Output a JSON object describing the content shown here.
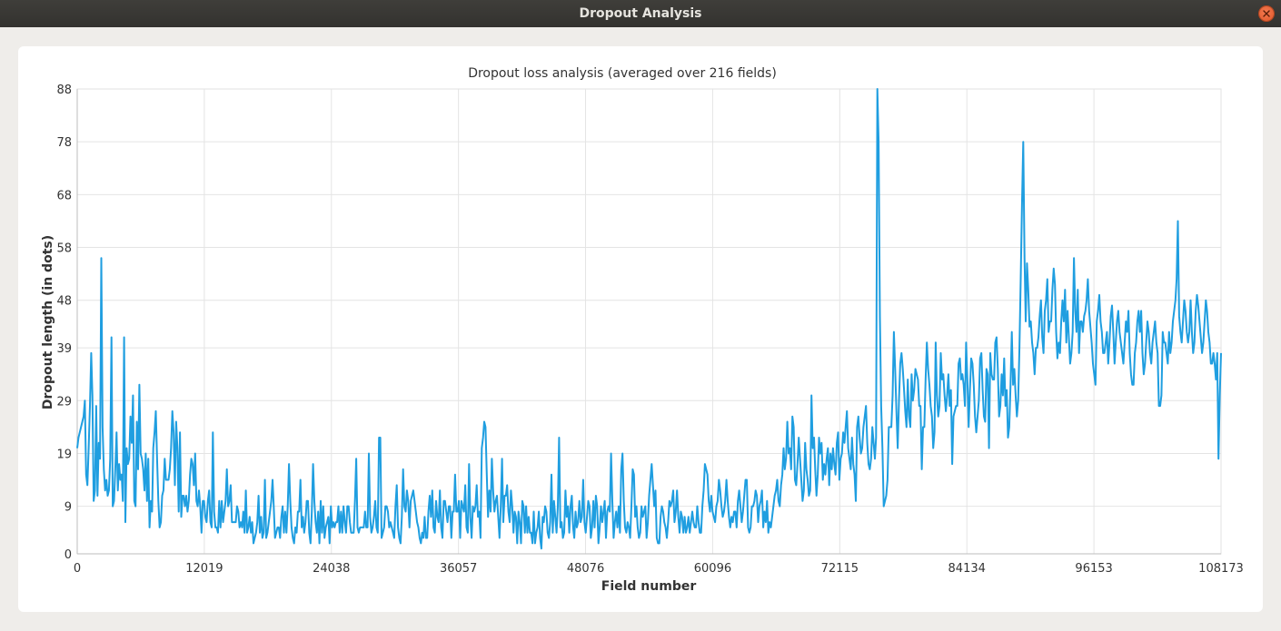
{
  "window": {
    "title": "Dropout Analysis"
  },
  "chart_data": {
    "type": "line",
    "title": "Dropout loss analysis (averaged over 216 fields)",
    "xlabel": "Field number",
    "ylabel": "Dropout length (in dots)",
    "xlim": [
      0,
      108173
    ],
    "ylim": [
      0,
      88
    ],
    "x_ticks": [
      "0",
      "12019",
      "24038",
      "36057",
      "48076",
      "60096",
      "72115",
      "84134",
      "96153",
      "108173"
    ],
    "y_ticks": [
      "0",
      "9",
      "19",
      "29",
      "39",
      "48",
      "58",
      "68",
      "78",
      "88"
    ],
    "grid": true,
    "legend": "none",
    "series_color": "#1f9ee0",
    "series": [
      {
        "x_step": 216,
        "values": [
          20,
          22,
          23,
          24,
          25,
          26,
          29,
          15,
          13,
          20,
          28,
          38,
          30,
          10,
          12,
          28,
          11,
          21,
          18,
          56,
          24,
          16,
          12,
          14,
          11,
          12,
          18,
          41,
          9,
          10,
          16,
          23,
          12,
          17,
          14,
          15,
          10,
          41,
          6,
          20,
          17,
          18,
          26,
          21,
          30,
          10,
          9,
          25,
          16,
          32,
          19,
          18,
          16,
          12,
          19,
          10,
          18,
          5,
          10,
          8,
          20,
          23,
          27,
          18,
          10,
          5,
          6,
          11,
          12,
          18,
          14,
          14,
          14,
          16,
          20,
          27,
          23,
          13,
          25,
          20,
          8,
          23,
          7,
          11,
          11,
          9,
          11,
          8,
          10,
          15,
          18,
          17,
          13,
          19,
          10,
          9,
          12,
          9,
          4,
          10,
          10,
          7,
          6,
          10,
          12,
          6,
          5,
          23,
          8,
          5,
          5,
          4,
          10,
          5,
          10,
          6,
          8,
          10,
          16,
          9,
          10,
          13,
          6,
          6,
          6,
          6,
          9,
          8,
          5,
          6,
          5,
          8,
          4,
          12,
          4,
          5,
          7,
          4,
          6,
          2,
          3,
          4,
          6,
          11,
          4,
          7,
          3,
          4,
          14,
          3,
          4,
          6,
          8,
          10,
          14,
          9,
          3,
          4,
          5,
          5,
          3,
          7,
          9,
          4,
          8,
          4,
          9,
          17,
          10,
          5,
          3,
          2,
          5,
          4,
          8,
          8,
          14,
          5,
          7,
          4,
          6,
          10,
          10,
          4,
          2,
          8,
          17,
          10,
          6,
          4,
          8,
          2,
          10,
          4,
          9,
          3,
          5,
          6,
          7,
          2,
          9,
          5,
          6,
          5,
          6,
          6,
          9,
          4,
          8,
          4,
          9,
          6,
          4,
          9,
          9,
          6,
          4,
          4,
          4,
          10,
          18,
          5,
          4,
          5,
          5,
          5,
          5,
          8,
          5,
          5,
          19,
          7,
          4,
          5,
          7,
          10,
          5,
          4,
          22,
          22,
          3,
          4,
          5,
          9,
          9,
          8,
          5,
          6,
          5,
          4,
          3,
          9,
          13,
          5,
          3,
          2,
          7,
          16,
          9,
          8,
          12,
          10,
          5,
          10,
          11,
          12,
          10,
          8,
          6,
          5,
          3,
          2,
          4,
          3,
          7,
          3,
          3,
          8,
          11,
          7,
          12,
          5,
          4,
          10,
          7,
          6,
          12,
          5,
          3,
          10,
          10,
          8,
          6,
          9,
          9,
          3,
          8,
          8,
          15,
          8,
          8,
          10,
          3,
          10,
          9,
          8,
          13,
          5,
          4,
          17,
          7,
          3,
          9,
          8,
          9,
          13,
          7,
          8,
          3,
          20,
          22,
          25,
          24,
          15,
          7,
          12,
          8,
          18,
          12,
          8,
          10,
          11,
          7,
          3,
          9,
          18,
          6,
          11,
          11,
          13,
          8,
          6,
          12,
          9,
          4,
          8,
          7,
          2,
          8,
          6,
          2,
          10,
          9,
          4,
          9,
          4,
          7,
          4,
          4,
          2,
          8,
          2,
          4,
          5,
          8,
          3,
          1,
          7,
          6,
          9,
          8,
          4,
          3,
          6,
          15,
          4,
          10,
          7,
          4,
          9,
          22,
          5,
          6,
          3,
          4,
          12,
          7,
          9,
          4,
          9,
          11,
          5,
          3,
          8,
          5,
          6,
          10,
          6,
          7,
          14,
          6,
          4,
          7,
          10,
          9,
          3,
          5,
          10,
          5,
          11,
          9,
          2,
          5,
          9,
          6,
          8,
          10,
          3,
          8,
          9,
          8,
          19,
          10,
          3,
          6,
          8,
          5,
          9,
          4,
          16,
          19,
          10,
          5,
          4,
          6,
          5,
          3,
          9,
          16,
          15,
          7,
          9,
          5,
          3,
          4,
          9,
          7,
          8,
          9,
          3,
          6,
          11,
          14,
          17,
          13,
          9,
          12,
          3,
          2,
          2,
          7,
          9,
          8,
          6,
          5,
          3,
          6,
          10,
          9,
          10,
          12,
          6,
          8,
          12,
          7,
          4,
          8,
          7,
          4,
          7,
          4,
          5,
          7,
          4,
          6,
          8,
          6,
          5,
          5,
          9,
          6,
          4,
          4,
          9,
          12,
          17,
          16,
          15,
          10,
          8,
          11,
          8,
          7,
          6,
          9,
          10,
          14,
          12,
          9,
          7,
          8,
          10,
          14,
          10,
          7,
          5,
          7,
          6,
          8,
          8,
          5,
          10,
          12,
          9,
          6,
          8,
          11,
          14,
          14,
          5,
          4,
          5,
          9,
          9,
          10,
          12,
          11,
          6,
          9,
          10,
          12,
          5,
          8,
          6,
          10,
          4,
          6,
          5,
          7,
          9,
          11,
          12,
          14,
          10,
          9,
          13,
          15,
          20,
          16,
          18,
          25,
          19,
          20,
          16,
          26,
          24,
          14,
          13,
          17,
          22,
          18,
          14,
          10,
          12,
          21,
          16,
          14,
          11,
          12,
          30,
          20,
          22,
          16,
          11,
          15,
          22,
          19,
          21,
          14,
          17,
          15,
          18,
          20,
          13,
          19,
          16,
          20,
          17,
          15,
          21,
          23,
          14,
          18,
          19,
          23,
          21,
          24,
          27,
          20,
          18,
          16,
          22,
          17,
          15,
          10,
          24,
          26,
          22,
          19,
          20,
          24,
          26,
          28,
          21,
          17,
          16,
          18,
          24,
          21,
          18,
          22,
          88,
          78,
          45,
          28,
          20,
          9,
          10,
          11,
          14,
          24,
          24,
          24,
          30,
          42,
          35,
          27,
          20,
          29,
          36,
          38,
          35,
          31,
          27,
          24,
          33,
          26,
          24,
          34,
          29,
          31,
          35,
          34,
          33,
          28,
          28,
          16,
          24,
          24,
          33,
          40,
          35,
          32,
          28,
          26,
          20,
          23,
          40,
          30,
          26,
          28,
          38,
          33,
          34,
          30,
          27,
          30,
          34,
          28,
          31,
          17,
          26,
          27,
          28,
          28,
          36,
          37,
          33,
          34,
          32,
          28,
          40,
          33,
          24,
          31,
          37,
          36,
          32,
          26,
          23,
          26,
          29,
          37,
          38,
          31,
          26,
          25,
          35,
          34,
          20,
          38,
          34,
          33,
          33,
          40,
          41,
          35,
          26,
          28,
          34,
          30,
          37,
          28,
          31,
          22,
          24,
          32,
          42,
          32,
          35,
          30,
          26,
          29,
          39,
          52,
          66,
          78,
          56,
          44,
          55,
          50,
          43,
          44,
          40,
          38,
          34,
          39,
          39,
          41,
          45,
          48,
          41,
          38,
          46,
          48,
          52,
          42,
          44,
          44,
          50,
          54,
          51,
          42,
          37,
          40,
          38,
          44,
          48,
          44,
          50,
          40,
          46,
          41,
          36,
          38,
          42,
          56,
          46,
          42,
          50,
          38,
          44,
          44,
          42,
          45,
          46,
          48,
          52,
          46,
          43,
          40,
          36,
          34,
          32,
          44,
          46,
          49,
          44,
          42,
          38,
          38,
          40,
          42,
          36,
          40,
          45,
          47,
          42,
          36,
          40,
          44,
          46,
          42,
          40,
          38,
          36,
          40,
          44,
          42,
          46,
          38,
          34,
          32,
          32,
          38,
          40,
          44,
          46,
          42,
          46,
          38,
          34,
          36,
          40,
          44,
          42,
          38,
          36,
          40,
          42,
          44,
          40,
          38,
          28,
          28,
          30,
          42,
          40,
          40,
          38,
          36,
          42,
          38,
          40,
          44,
          46,
          48,
          52,
          63,
          45,
          42,
          40,
          44,
          48,
          46,
          42,
          40,
          42,
          48,
          42,
          38,
          40,
          46,
          49,
          47,
          44,
          41,
          38,
          40,
          44,
          48,
          46,
          42,
          40,
          36,
          36,
          38,
          36,
          33,
          38,
          18,
          30,
          38
        ]
      }
    ]
  }
}
